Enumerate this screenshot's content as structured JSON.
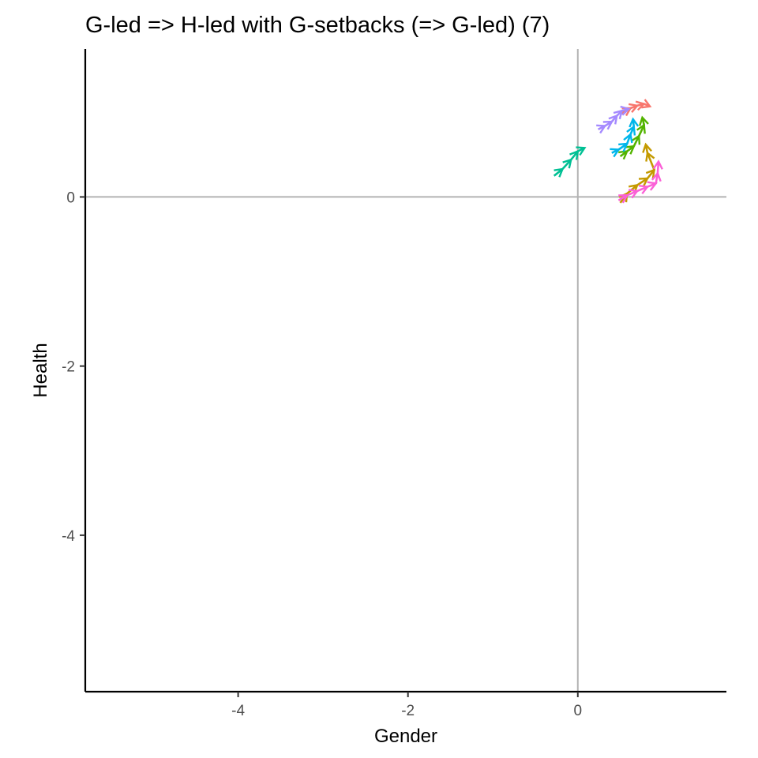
{
  "chart_data": {
    "type": "line",
    "title": "G-led => H-led with G-setbacks (=> G-led) (7)",
    "xlabel": "Gender",
    "ylabel": "Health",
    "xlim": [
      -5.8,
      1.75
    ],
    "ylim": [
      -5.85,
      1.75
    ],
    "x_ticks": [
      -4,
      -2,
      0
    ],
    "y_ticks": [
      -4,
      -2,
      0
    ],
    "x_tick_labels": [
      "-4",
      "-2",
      "0"
    ],
    "y_tick_labels": [
      "-4",
      "-2",
      "0"
    ],
    "reference_lines": {
      "x": 0,
      "y": 0,
      "color": "#b3b3b3"
    },
    "grid": false,
    "legend": "none",
    "series": [
      {
        "color": "#F8766D",
        "points": [
          [
            0.5,
            0.98
          ],
          [
            0.62,
            1.05
          ],
          [
            0.7,
            1.08
          ],
          [
            0.78,
            1.1
          ],
          [
            0.85,
            1.07
          ]
        ]
      },
      {
        "color": "#C49A00",
        "points": [
          [
            0.5,
            -0.07
          ],
          [
            0.58,
            0.04
          ],
          [
            0.7,
            0.14
          ],
          [
            0.82,
            0.22
          ],
          [
            0.9,
            0.32
          ],
          [
            0.82,
            0.52
          ],
          [
            0.8,
            0.62
          ]
        ]
      },
      {
        "color": "#53B400",
        "points": [
          [
            0.5,
            0.48
          ],
          [
            0.58,
            0.54
          ],
          [
            0.66,
            0.6
          ],
          [
            0.72,
            0.72
          ],
          [
            0.78,
            0.85
          ],
          [
            0.76,
            0.94
          ]
        ]
      },
      {
        "color": "#00C094",
        "points": [
          [
            -0.28,
            0.25
          ],
          [
            -0.18,
            0.33
          ],
          [
            -0.08,
            0.44
          ],
          [
            0.0,
            0.54
          ],
          [
            0.08,
            0.58
          ]
        ]
      },
      {
        "color": "#00B6EB",
        "points": [
          [
            0.4,
            0.52
          ],
          [
            0.48,
            0.56
          ],
          [
            0.58,
            0.63
          ],
          [
            0.62,
            0.74
          ],
          [
            0.66,
            0.83
          ],
          [
            0.65,
            0.92
          ]
        ]
      },
      {
        "color": "#A58AFF",
        "points": [
          [
            0.24,
            0.8
          ],
          [
            0.32,
            0.84
          ],
          [
            0.4,
            0.89
          ],
          [
            0.46,
            0.96
          ],
          [
            0.52,
            1.02
          ],
          [
            0.6,
            1.04
          ]
        ]
      },
      {
        "color": "#FB61D7",
        "points": [
          [
            0.48,
            -0.04
          ],
          [
            0.58,
            0.02
          ],
          [
            0.7,
            0.07
          ],
          [
            0.82,
            0.12
          ],
          [
            0.92,
            0.16
          ],
          [
            0.94,
            0.28
          ],
          [
            0.95,
            0.42
          ]
        ]
      }
    ]
  }
}
